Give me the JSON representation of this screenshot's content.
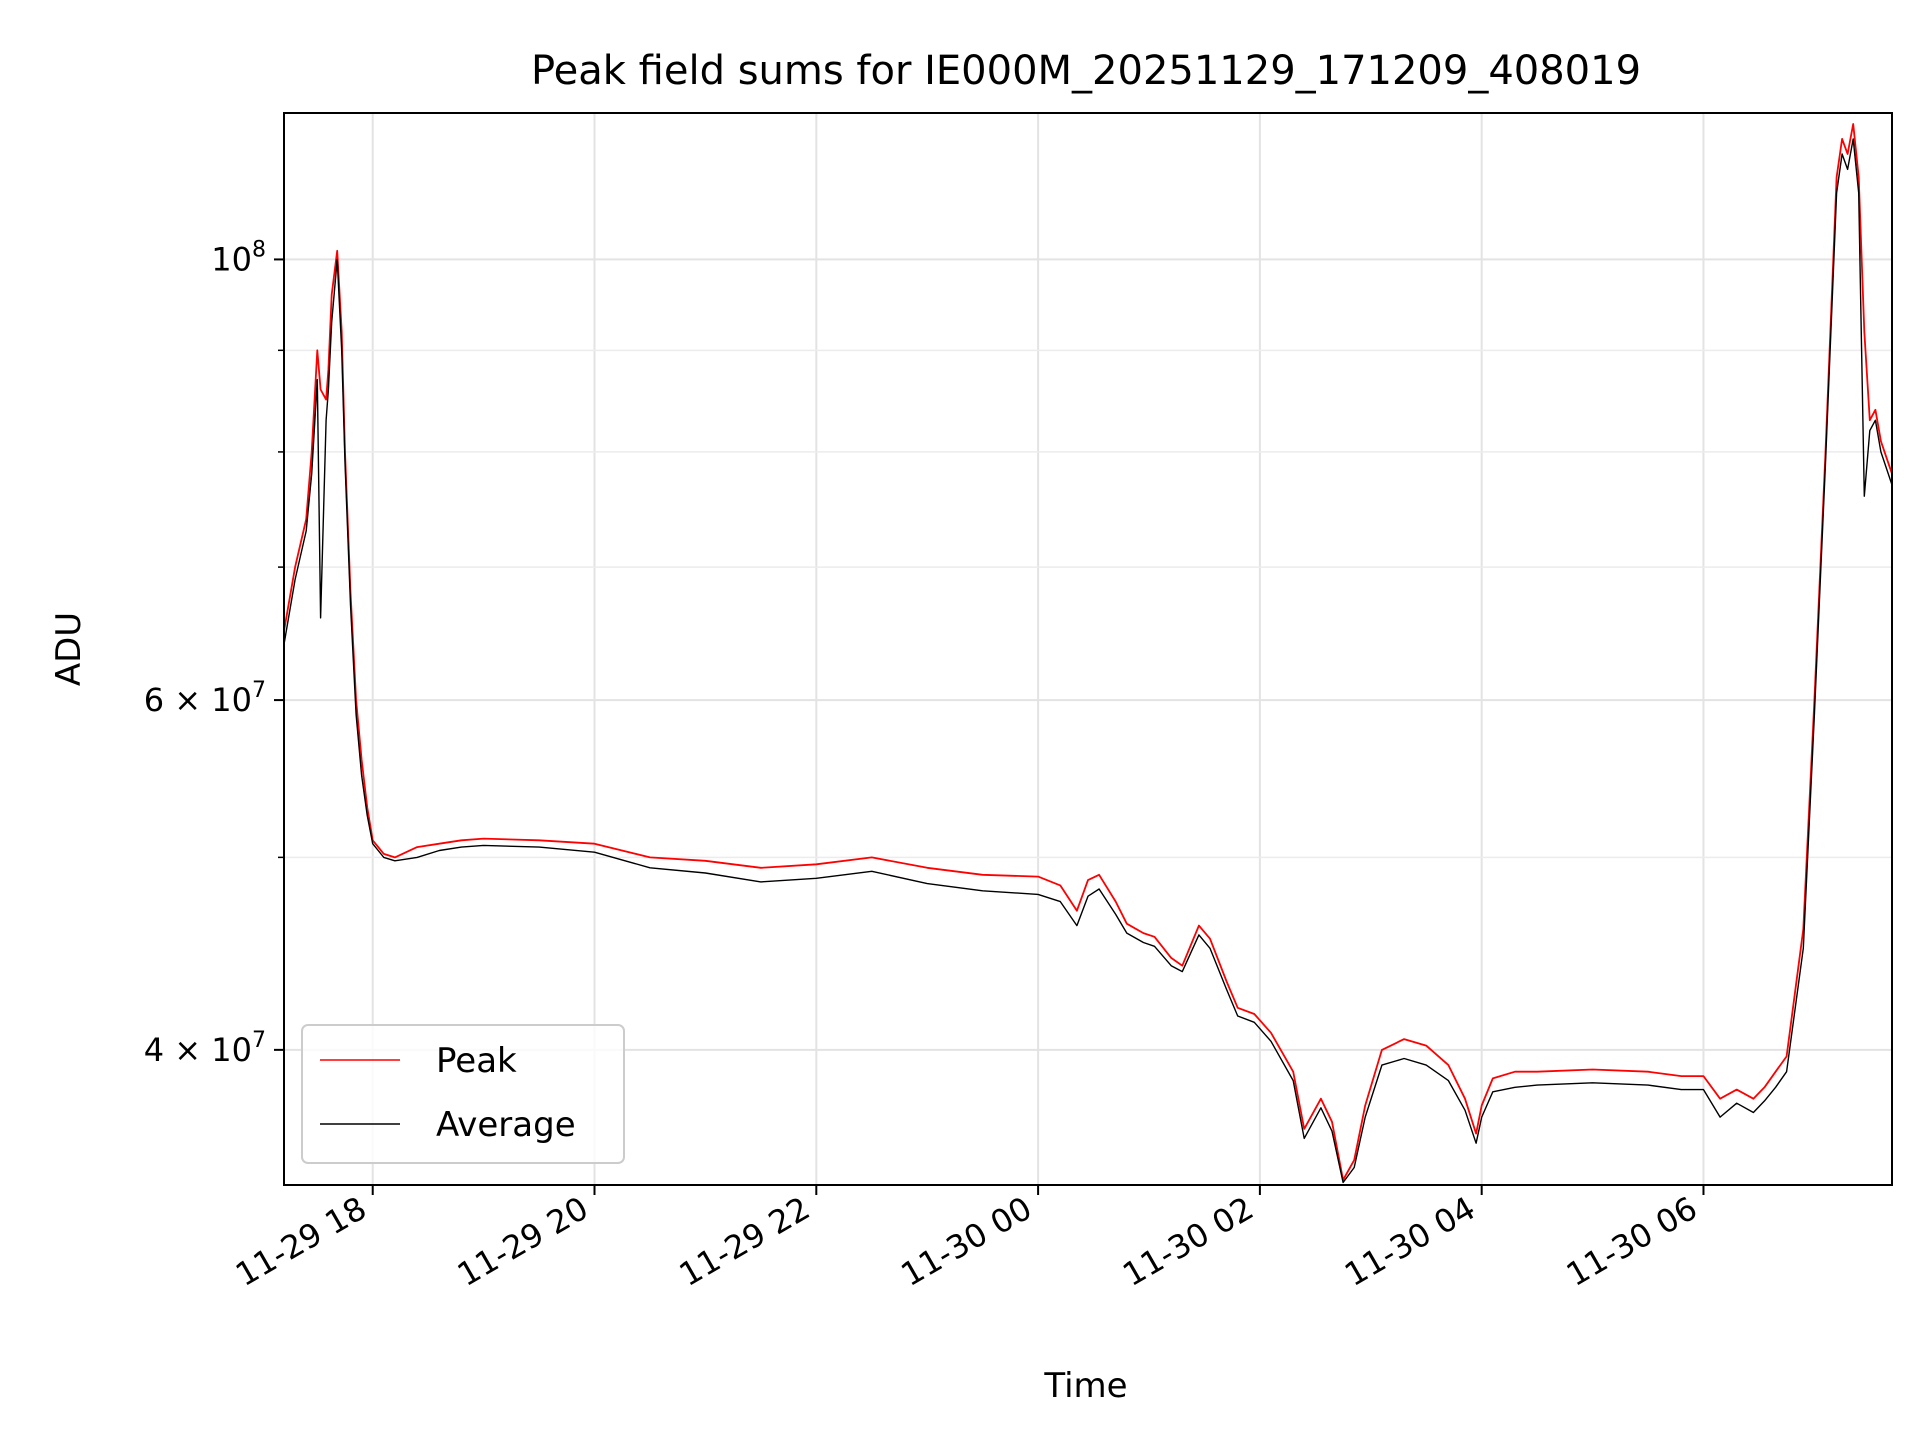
{
  "chart_data": {
    "type": "line",
    "title": "Peak field sums for IE000M_20251129_171209_408019",
    "xlabel": "Time",
    "ylabel": "ADU",
    "yscale": "log",
    "grid": true,
    "legend_position": "lower-left",
    "xlim_hours": [
      17.2,
      31.7
    ],
    "ylim": [
      34200000,
      118500000
    ],
    "x_ticks": [
      {
        "hour": 18,
        "label": "11-29 18"
      },
      {
        "hour": 20,
        "label": "11-29 20"
      },
      {
        "hour": 22,
        "label": "11-29 22"
      },
      {
        "hour": 24,
        "label": "11-30 00"
      },
      {
        "hour": 26,
        "label": "11-30 02"
      },
      {
        "hour": 28,
        "label": "11-30 04"
      },
      {
        "hour": 30,
        "label": "11-30 06"
      }
    ],
    "y_ticks": [
      {
        "value": 100000000,
        "mantissa": "10",
        "exponent": "8"
      },
      {
        "value": 60000000,
        "mantissa": "6 × 10",
        "exponent": "7"
      },
      {
        "value": 40000000,
        "mantissa": "4 × 10",
        "exponent": "7"
      }
    ],
    "y_minor_ticks": [
      50000000,
      70000000,
      80000000,
      90000000
    ],
    "series": [
      {
        "name": "Peak",
        "color": "#ff0000",
        "x": [
          17.2,
          17.3,
          17.4,
          17.45,
          17.5,
          17.53,
          17.58,
          17.6,
          17.63,
          17.68,
          17.72,
          17.75,
          17.8,
          17.85,
          17.9,
          17.95,
          18.0,
          18.1,
          18.2,
          18.4,
          18.6,
          18.8,
          19.0,
          19.5,
          20.0,
          20.5,
          21.0,
          21.5,
          22.0,
          22.5,
          23.0,
          23.5,
          24.0,
          24.2,
          24.35,
          24.45,
          24.55,
          24.7,
          24.8,
          24.95,
          25.05,
          25.2,
          25.3,
          25.45,
          25.55,
          25.7,
          25.8,
          25.95,
          26.1,
          26.3,
          26.4,
          26.55,
          26.65,
          26.75,
          26.85,
          26.95,
          27.1,
          27.3,
          27.5,
          27.7,
          27.85,
          27.95,
          28.0,
          28.1,
          28.3,
          28.5,
          29.0,
          29.5,
          29.8,
          30.0,
          30.15,
          30.3,
          30.45,
          30.55,
          30.65,
          30.75,
          30.9,
          31.0,
          31.1,
          31.2,
          31.25,
          31.3,
          31.35,
          31.4,
          31.45,
          31.5,
          31.55,
          31.6,
          31.7
        ],
        "values": [
          65000000,
          70000000,
          74000000,
          80000000,
          90000000,
          86000000,
          85000000,
          88000000,
          96000000,
          101000000,
          92000000,
          80000000,
          68000000,
          60000000,
          56000000,
          53000000,
          51000000,
          50200000,
          50000000,
          50600000,
          50800000,
          51000000,
          51100000,
          51000000,
          50800000,
          50000000,
          49800000,
          49400000,
          49600000,
          50000000,
          49400000,
          49000000,
          48900000,
          48400000,
          47000000,
          48700000,
          49000000,
          47500000,
          46300000,
          45800000,
          45600000,
          44500000,
          44100000,
          46200000,
          45500000,
          43300000,
          42000000,
          41700000,
          40800000,
          39000000,
          36500000,
          37800000,
          36800000,
          34400000,
          35200000,
          37500000,
          40000000,
          40500000,
          40200000,
          39300000,
          37800000,
          36300000,
          37500000,
          38700000,
          39000000,
          39000000,
          39100000,
          39000000,
          38800000,
          38800000,
          37800000,
          38200000,
          37800000,
          38300000,
          39000000,
          39700000,
          46000000,
          60000000,
          80000000,
          110000000,
          115000000,
          113000000,
          117000000,
          110000000,
          92000000,
          83000000,
          84000000,
          81000000,
          78000000
        ]
      },
      {
        "name": "Average",
        "color": "#000000",
        "x": [
          17.2,
          17.3,
          17.4,
          17.45,
          17.5,
          17.53,
          17.58,
          17.6,
          17.63,
          17.68,
          17.72,
          17.75,
          17.8,
          17.85,
          17.9,
          17.95,
          18.0,
          18.1,
          18.2,
          18.4,
          18.6,
          18.8,
          19.0,
          19.5,
          20.0,
          20.5,
          21.0,
          21.5,
          22.0,
          22.5,
          23.0,
          23.5,
          24.0,
          24.2,
          24.35,
          24.45,
          24.55,
          24.7,
          24.8,
          24.95,
          25.05,
          25.2,
          25.3,
          25.45,
          25.55,
          25.7,
          25.8,
          25.95,
          26.1,
          26.3,
          26.4,
          26.55,
          26.65,
          26.75,
          26.85,
          26.95,
          27.1,
          27.3,
          27.5,
          27.7,
          27.85,
          27.95,
          28.0,
          28.1,
          28.3,
          28.5,
          29.0,
          29.5,
          29.8,
          30.0,
          30.15,
          30.3,
          30.45,
          30.55,
          30.65,
          30.75,
          30.9,
          31.0,
          31.1,
          31.2,
          31.25,
          31.3,
          31.35,
          31.4,
          31.45,
          31.5,
          31.55,
          31.6,
          31.7
        ],
        "values": [
          64000000,
          69000000,
          73000000,
          78000000,
          87000000,
          66000000,
          83000000,
          86000000,
          93000000,
          100000000,
          90000000,
          79000000,
          67000000,
          59000000,
          55000000,
          52500000,
          50800000,
          50000000,
          49800000,
          50000000,
          50400000,
          50600000,
          50700000,
          50600000,
          50300000,
          49400000,
          49100000,
          48600000,
          48800000,
          49200000,
          48500000,
          48100000,
          47900000,
          47500000,
          46200000,
          47800000,
          48200000,
          46800000,
          45800000,
          45300000,
          45100000,
          44100000,
          43800000,
          45700000,
          45000000,
          42900000,
          41600000,
          41300000,
          40400000,
          38600000,
          36100000,
          37400000,
          36400000,
          34300000,
          34900000,
          37000000,
          39300000,
          39600000,
          39300000,
          38600000,
          37300000,
          35900000,
          37000000,
          38100000,
          38300000,
          38400000,
          38500000,
          38400000,
          38200000,
          38200000,
          37000000,
          37600000,
          37200000,
          37700000,
          38300000,
          39000000,
          45000000,
          59000000,
          79000000,
          108000000,
          113000000,
          111000000,
          115000000,
          108000000,
          76000000,
          82000000,
          83000000,
          80000000,
          77000000
        ]
      }
    ]
  }
}
